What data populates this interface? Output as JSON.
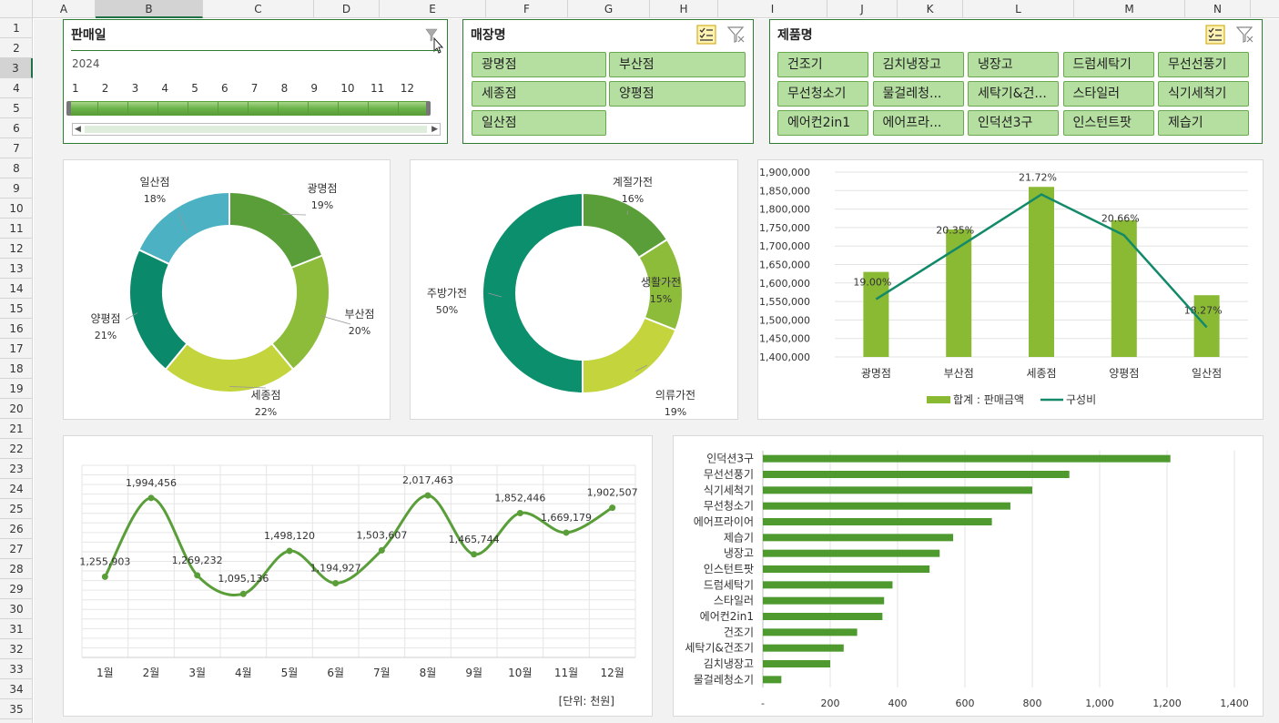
{
  "columns": [
    "A",
    "B",
    "C",
    "D",
    "E",
    "F",
    "G",
    "H",
    "I",
    "J",
    "K",
    "L",
    "M",
    "N"
  ],
  "rows": [
    "1",
    "2",
    "3",
    "4",
    "5",
    "6",
    "7",
    "8",
    "9",
    "10",
    "11",
    "12",
    "13",
    "14",
    "15",
    "16",
    "17",
    "18",
    "19",
    "20",
    "21",
    "22",
    "23",
    "24",
    "25",
    "26",
    "27",
    "28",
    "29",
    "30",
    "31",
    "32",
    "33",
    "34",
    "35"
  ],
  "slicers": {
    "date": {
      "title": "판매일",
      "year": "2024",
      "months": [
        "1",
        "2",
        "3",
        "4",
        "5",
        "6",
        "7",
        "8",
        "9",
        "10",
        "11",
        "12"
      ]
    },
    "store": {
      "title": "매장명",
      "items": [
        "광명점",
        "부산점",
        "세종점",
        "양평점",
        "일산점"
      ]
    },
    "product": {
      "title": "제품명",
      "items": [
        "건조기",
        "김치냉장고",
        "냉장고",
        "드럼세탁기",
        "무선선풍기",
        "무선청소기",
        "물걸레청...",
        "세탁기&건...",
        "스타일러",
        "식기세척기",
        "에어컨2in1",
        "에어프라...",
        "인덕션3구",
        "인스턴트팟",
        "제습기"
      ]
    }
  },
  "chart_data": [
    {
      "type": "pie",
      "subtype": "donut",
      "title": "",
      "categories": [
        "광명점",
        "부산점",
        "세종점",
        "양평점",
        "일산점"
      ],
      "values": [
        19,
        20,
        22,
        21,
        18
      ],
      "labels": [
        "19%",
        "20%",
        "22%",
        "21%",
        "18%"
      ],
      "colors": [
        "#5a9e3a",
        "#8dbb3a",
        "#c3d43c",
        "#0b8a6b",
        "#4bb1c3"
      ]
    },
    {
      "type": "pie",
      "subtype": "donut",
      "title": "",
      "categories": [
        "계절가전",
        "생활가전",
        "의류가전",
        "주방가전"
      ],
      "values": [
        16,
        15,
        19,
        50
      ],
      "labels": [
        "16%",
        "15%",
        "19%",
        "50%"
      ],
      "colors": [
        "#5a9e3a",
        "#8dbb3a",
        "#c3d43c",
        "#0b8f6c"
      ]
    },
    {
      "type": "bar",
      "title": "",
      "categories": [
        "광명점",
        "부산점",
        "세종점",
        "양평점",
        "일산점"
      ],
      "series": [
        {
          "name": "합계 : 판매금액",
          "values": [
            1630000,
            1745000,
            1860000,
            1770000,
            1567000
          ]
        },
        {
          "name": "구성비",
          "values": [
            19.0,
            20.35,
            21.72,
            20.66,
            18.27
          ]
        }
      ],
      "line_labels": [
        "19.00%",
        "20.35%",
        "21.72%",
        "20.66%",
        "18.27%"
      ],
      "yticks": [
        "1,400,000",
        "1,450,000",
        "1,500,000",
        "1,550,000",
        "1,600,000",
        "1,650,000",
        "1,700,000",
        "1,750,000",
        "1,800,000",
        "1,850,000",
        "1,900,000"
      ],
      "ylim": [
        1400000,
        1900000
      ],
      "legend": [
        "합계 : 판매금액",
        "구성비"
      ]
    },
    {
      "type": "line",
      "title": "",
      "categories": [
        "1월",
        "2월",
        "3월",
        "4월",
        "5월",
        "6월",
        "7월",
        "8월",
        "9월",
        "10월",
        "11월",
        "12월"
      ],
      "values": [
        1255903,
        1994456,
        1269232,
        1095136,
        1498120,
        1194927,
        1503607,
        2017463,
        1465744,
        1852446,
        1669179,
        1902507
      ],
      "labels": [
        "1,255,903",
        "1,994,456",
        "1,269,232",
        "1,095,136",
        "1,498,120",
        "1,194,927",
        "1,503,607",
        "2,017,463",
        "1,465,744",
        "1,852,446",
        "1,669,179",
        "1,902,507"
      ],
      "unit": "[단위: 천원]"
    },
    {
      "type": "bar",
      "orientation": "horizontal",
      "title": "",
      "categories": [
        "인덕션3구",
        "무선선풍기",
        "식기세척기",
        "무선청소기",
        "에어프라이어",
        "제습기",
        "냉장고",
        "인스턴트팟",
        "드럼세탁기",
        "스타일러",
        "에어컨2in1",
        "건조기",
        "세탁기&건조기",
        "김치냉장고",
        "물걸레청소기"
      ],
      "values": [
        1210,
        910,
        800,
        735,
        680,
        565,
        525,
        495,
        385,
        360,
        355,
        280,
        240,
        200,
        55
      ],
      "xticks": [
        "-",
        "200",
        "400",
        "600",
        "800",
        "1,000",
        "1,200",
        "1,400"
      ],
      "xlim": [
        0,
        1400
      ]
    }
  ]
}
